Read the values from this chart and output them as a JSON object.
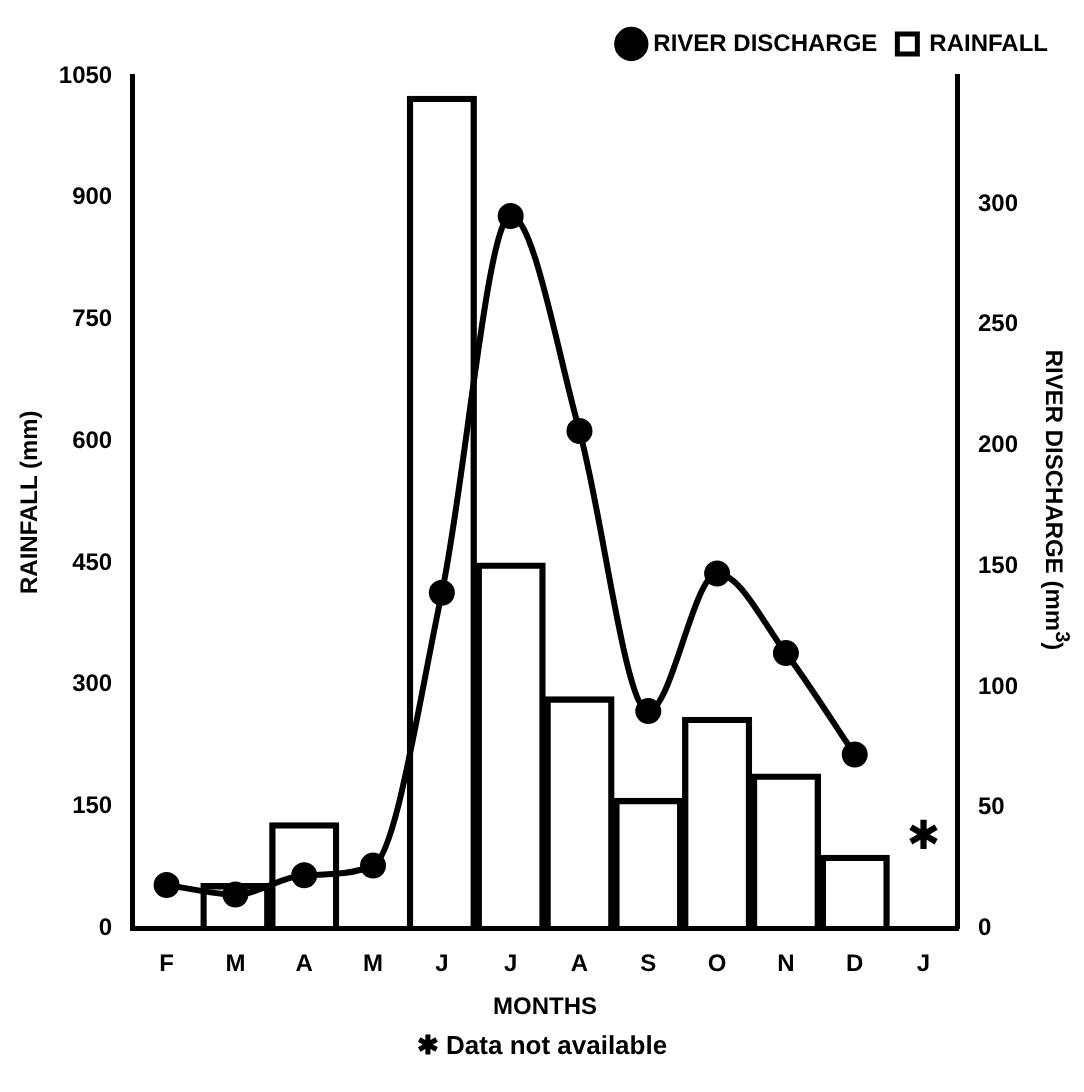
{
  "chart_data": {
    "type": "bar",
    "xlabel": "MONTHS",
    "ylabel": "RAINFALL (mm)",
    "y2label": "RIVER DISCHARGE (mm$^{3}$)",
    "categories": [
      "F",
      "M",
      "A",
      "M",
      "J",
      "J",
      "A",
      "S",
      "O",
      "N",
      "D",
      "J"
    ],
    "series": [
      {
        "name": "RAINFALL",
        "color": "#000000",
        "values": [
          null,
          55,
          130,
          null,
          1025,
          450,
          285,
          160,
          260,
          190,
          90,
          null
        ]
      },
      {
        "name": "RIVER DISCHARGE",
        "type": "line",
        "axis": "y2",
        "color": "#000000",
        "marker": "circle",
        "values": [
          18,
          14,
          22,
          26,
          139,
          295,
          206,
          90,
          147,
          114,
          72,
          null
        ]
      }
    ],
    "ylim": [
      0,
      1050
    ],
    "yticks": [
      0,
      150,
      300,
      450,
      600,
      750,
      900,
      1050
    ],
    "y2lim": [
      0,
      353
    ],
    "y2ticks": [
      0,
      50,
      100,
      150,
      200,
      250,
      300
    ],
    "grid": false,
    "legend": "top right",
    "annotations": [
      "✱",
      "✱ Data not available"
    ]
  }
}
